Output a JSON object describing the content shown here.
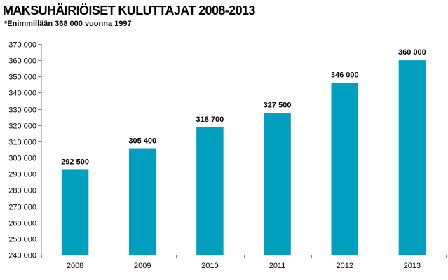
{
  "chart_data": {
    "type": "bar",
    "title": "MAKSUHÄIRIÖISET KULUTTAJAT 2008-2013",
    "subtitle": "*Enimmillään  368 000 vuonna  1997",
    "categories": [
      "2008",
      "2009",
      "2010",
      "2011",
      "2012",
      "2013"
    ],
    "values": [
      292500,
      305400,
      318700,
      327500,
      346000,
      360000
    ],
    "data_labels": [
      "292 500",
      "305 400",
      "318 700",
      "327 500",
      "346 000",
      "360 000"
    ],
    "ylim": [
      240000,
      370000
    ],
    "ytick_step": 10000,
    "ytick_labels": [
      "240 000",
      "250 000",
      "260 000",
      "270 000",
      "280 000",
      "290 000",
      "300 000",
      "310 000",
      "320 000",
      "330 000",
      "340 000",
      "350 000",
      "360 000",
      "370 000"
    ],
    "bar_color": "#009ebf",
    "xlabel": "",
    "ylabel": "",
    "grid": false
  }
}
